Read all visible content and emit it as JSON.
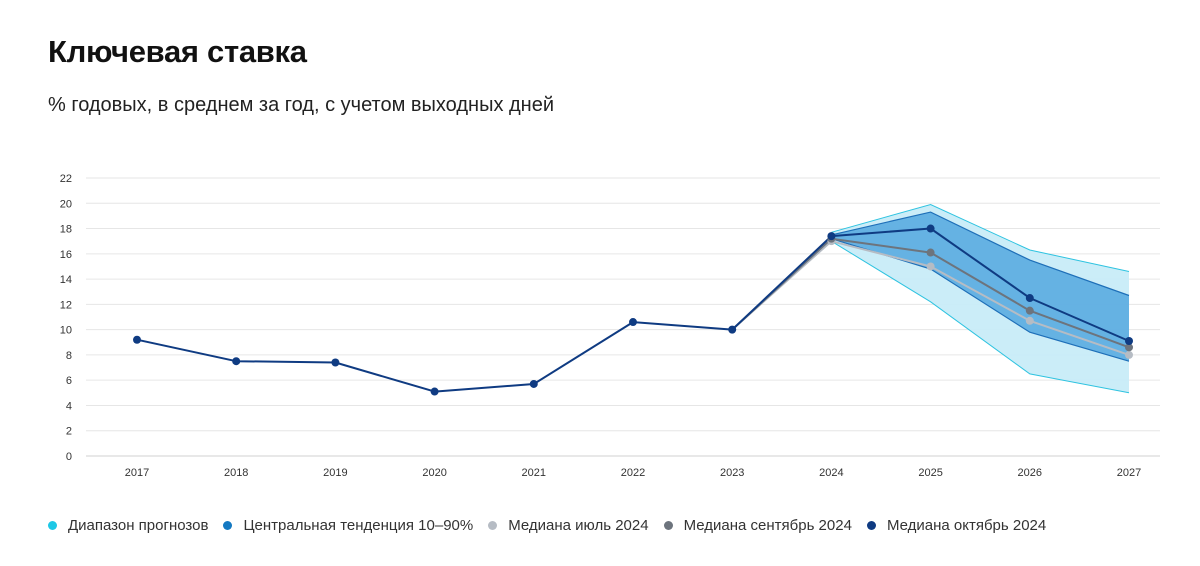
{
  "title": "Ключевая ставка",
  "subtitle": "% годовых, в среднем за год, с учетом выходных дней",
  "colors": {
    "range_fill": "#c8ecf8",
    "range_stroke": "#2ec3e0",
    "central_fill": "#5aabe0",
    "central_stroke": "#1e6fb8",
    "median_july": "#b6bcc4",
    "median_sept": "#6d747d",
    "median_oct": "#0f3b82",
    "grid": "#e6e6e6"
  },
  "legend": [
    {
      "label": "Диапазон прогнозов",
      "color": "#1ec8e6"
    },
    {
      "label": "Центральная тенденция 10–90%",
      "color": "#1479c2"
    },
    {
      "label": "Медиана июль 2024",
      "color": "#b6bcc4"
    },
    {
      "label": "Медиана сентябрь 2024",
      "color": "#6d747d"
    },
    {
      "label": "Медиана октябрь 2024",
      "color": "#0f3b82"
    }
  ],
  "chart_data": {
    "type": "line",
    "title": "Ключевая ставка",
    "subtitle": "% годовых, в среднем за год, с учетом выходных дней",
    "x": [
      "2017",
      "2018",
      "2019",
      "2020",
      "2021",
      "2022",
      "2023",
      "2024",
      "2025",
      "2026",
      "2027"
    ],
    "y_ticks": [
      "0",
      "2",
      "4",
      "6",
      "8",
      "10",
      "12",
      "14",
      "16",
      "18",
      "20",
      "22"
    ],
    "ylim": [
      0,
      22
    ],
    "grid": true,
    "legend_position": "bottom",
    "bands": [
      {
        "name": "Диапазон прогнозов",
        "x": [
          "2024",
          "2025",
          "2026",
          "2027"
        ],
        "low": [
          17.0,
          12.2,
          6.5,
          5.0
        ],
        "high": [
          17.7,
          19.9,
          16.3,
          14.6
        ]
      },
      {
        "name": "Центральная тенденция 10–90%",
        "x": [
          "2024",
          "2025",
          "2026",
          "2027"
        ],
        "low": [
          17.2,
          14.8,
          9.8,
          7.5
        ],
        "high": [
          17.5,
          19.3,
          15.5,
          12.7
        ]
      }
    ],
    "series": [
      {
        "name": "Медиана июль 2024",
        "x": [
          "2023",
          "2024",
          "2025",
          "2026",
          "2027"
        ],
        "values": [
          10.0,
          17.0,
          15.0,
          10.7,
          8.0
        ]
      },
      {
        "name": "Медиана сентябрь 2024",
        "x": [
          "2023",
          "2024",
          "2025",
          "2026",
          "2027"
        ],
        "values": [
          10.0,
          17.2,
          16.1,
          11.5,
          8.6
        ]
      },
      {
        "name": "Медиана октябрь 2024",
        "x": [
          "2017",
          "2018",
          "2019",
          "2020",
          "2021",
          "2022",
          "2023",
          "2024",
          "2025",
          "2026",
          "2027"
        ],
        "values": [
          9.2,
          7.5,
          7.4,
          5.1,
          5.7,
          10.6,
          10.0,
          17.4,
          18.0,
          12.5,
          9.1
        ]
      }
    ]
  }
}
